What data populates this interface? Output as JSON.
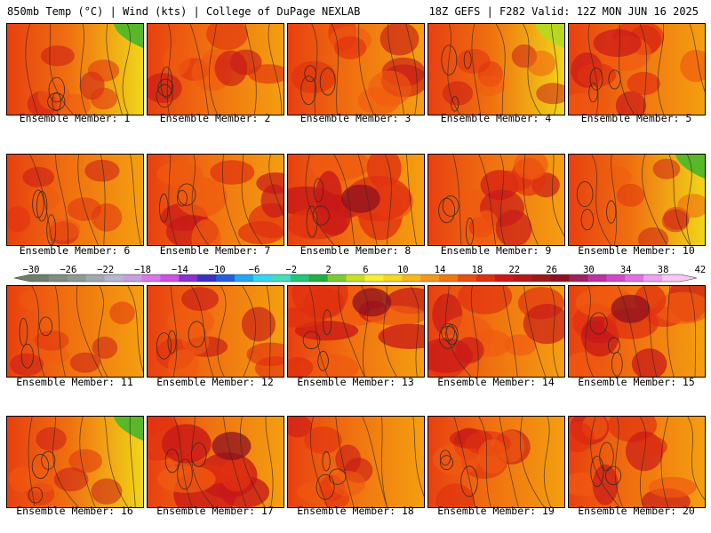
{
  "header": {
    "left": "850mb Temp (°C) | Wind (kts) | College of DuPage NEXLAB",
    "right": "18Z GEFS | F282 Valid: 12Z MON JUN 16 2025"
  },
  "panels": [
    {
      "label": "Ensemble Member: 1",
      "hot": 0.25,
      "cool": 0.55
    },
    {
      "label": "Ensemble Member: 2",
      "hot": 0.45,
      "cool": 0.1
    },
    {
      "label": "Ensemble Member: 3",
      "hot": 0.45,
      "cool": 0.25
    },
    {
      "label": "Ensemble Member: 4",
      "hot": 0.2,
      "cool": 0.45
    },
    {
      "label": "Ensemble Member: 5",
      "hot": 0.6,
      "cool": 0.0
    },
    {
      "label": "Ensemble Member: 6",
      "hot": 0.25,
      "cool": 0.2
    },
    {
      "label": "Ensemble Member: 7",
      "hot": 0.65,
      "cool": 0.05
    },
    {
      "label": "Ensemble Member: 8",
      "hot": 0.85,
      "cool": 0.0
    },
    {
      "label": "Ensemble Member: 9",
      "hot": 0.6,
      "cool": 0.0
    },
    {
      "label": "Ensemble Member: 10",
      "hot": 0.15,
      "cool": 0.6
    },
    {
      "label": "Ensemble Member: 11",
      "hot": 0.2,
      "cool": 0.1
    },
    {
      "label": "Ensemble Member: 12",
      "hot": 0.5,
      "cool": 0.05
    },
    {
      "label": "Ensemble Member: 13",
      "hot": 0.8,
      "cool": 0.0
    },
    {
      "label": "Ensemble Member: 14",
      "hot": 0.6,
      "cool": 0.0
    },
    {
      "label": "Ensemble Member: 15",
      "hot": 0.75,
      "cool": 0.0
    },
    {
      "label": "Ensemble Member: 16",
      "hot": 0.2,
      "cool": 0.55
    },
    {
      "label": "Ensemble Member: 17",
      "hot": 0.85,
      "cool": 0.0
    },
    {
      "label": "Ensemble Member: 18",
      "hot": 0.35,
      "cool": 0.1
    },
    {
      "label": "Ensemble Member: 19",
      "hot": 0.45,
      "cool": 0.0
    },
    {
      "label": "Ensemble Member: 20",
      "hot": 0.6,
      "cool": 0.0
    }
  ],
  "colorbar": {
    "labels": [
      "−30",
      "−26",
      "−22",
      "−18",
      "−14",
      "−10",
      "−6",
      "−2",
      "2",
      "6",
      "10",
      "14",
      "18",
      "22",
      "26",
      "30",
      "34",
      "38",
      "42"
    ],
    "colors": [
      "#6e7f6e",
      "#7e8e80",
      "#8e9a94",
      "#9eaab0",
      "#b4b8d2",
      "#c8a0e0",
      "#d678e6",
      "#d050e0",
      "#8830d0",
      "#3a30c0",
      "#2060e0",
      "#20a8f0",
      "#30d8f0",
      "#40e0c0",
      "#20c878",
      "#20b040",
      "#78cc30",
      "#c8e020",
      "#f8f030",
      "#f8d820",
      "#f8b818",
      "#f49818",
      "#f07810",
      "#e85010",
      "#e03010",
      "#d01818",
      "#b81818",
      "#a01818",
      "#901020",
      "#a02060",
      "#c030a0",
      "#d048c8",
      "#e070e0",
      "#f0a0f0",
      "#f8c8f8"
    ]
  }
}
